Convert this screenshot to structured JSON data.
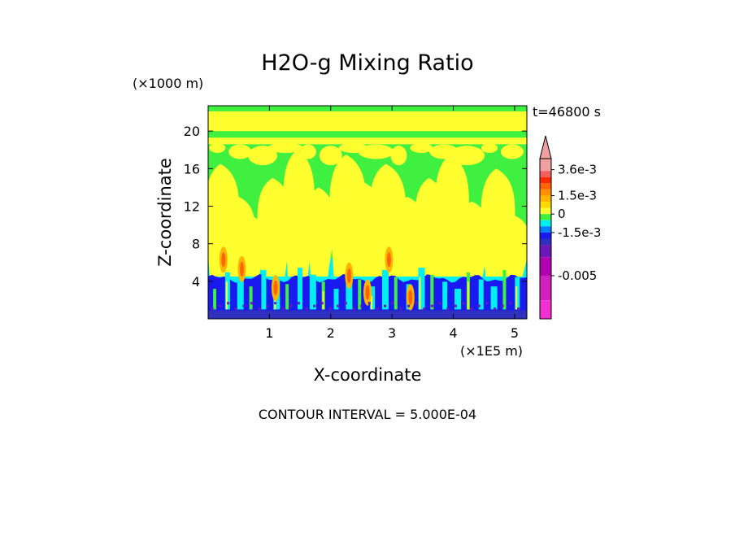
{
  "chart_data": {
    "type": "heatmap",
    "title": "H2O-g Mixing Ratio",
    "time_label": "t=46800 s",
    "xlabel": "X-coordinate",
    "ylabel": "Z-coordinate",
    "x_unit": "(×1E5 m)",
    "y_unit": "(×1000 m)",
    "xlim": [
      0,
      5.2
    ],
    "ylim": [
      0,
      22.7
    ],
    "x_ticks": [
      "1",
      "2",
      "3",
      "4",
      "5"
    ],
    "x_tick_values": [
      1,
      2,
      3,
      4,
      5
    ],
    "y_ticks": [
      "4",
      "8",
      "12",
      "16",
      "20"
    ],
    "y_tick_values": [
      4,
      8,
      12,
      16,
      20
    ],
    "contour_interval_text": "CONTOUR INTERVAL = 5.000E-04",
    "colorbar": {
      "labels": [
        "3.6e-3",
        "1.5e-3",
        "0",
        "-1.5e-3",
        "-0.005"
      ],
      "label_values": [
        0.0036,
        0.0015,
        0,
        -0.0015,
        -0.005
      ],
      "range": [
        -0.0085,
        0.0045
      ],
      "bands": [
        {
          "from": 0.0035,
          "to": 0.0045,
          "color": "#f0a0a0"
        },
        {
          "from": 0.003,
          "to": 0.0035,
          "color": "#f06060"
        },
        {
          "from": 0.0025,
          "to": 0.003,
          "color": "#ff2a00"
        },
        {
          "from": 0.002,
          "to": 0.0025,
          "color": "#ff6400"
        },
        {
          "from": 0.0015,
          "to": 0.002,
          "color": "#ff9000"
        },
        {
          "from": 0.001,
          "to": 0.0015,
          "color": "#ffb400"
        },
        {
          "from": 0.0005,
          "to": 0.001,
          "color": "#ffd800"
        },
        {
          "from": 0.0,
          "to": 0.0005,
          "color": "#ffff30"
        },
        {
          "from": -0.0005,
          "to": 0.0,
          "color": "#40f040"
        },
        {
          "from": -0.001,
          "to": -0.0005,
          "color": "#00f0f0"
        },
        {
          "from": -0.0015,
          "to": -0.001,
          "color": "#0080ff"
        },
        {
          "from": -0.002,
          "to": -0.0015,
          "color": "#1a1af0"
        },
        {
          "from": -0.0025,
          "to": -0.002,
          "color": "#3030c0"
        },
        {
          "from": -0.0035,
          "to": -0.0025,
          "color": "#6a18b8"
        },
        {
          "from": -0.005,
          "to": -0.0035,
          "color": "#b000b0"
        },
        {
          "from": -0.007,
          "to": -0.005,
          "color": "#d020c0"
        },
        {
          "from": -0.0085,
          "to": -0.007,
          "color": "#f030d0"
        }
      ]
    },
    "field_layers": [
      {
        "name": "yellow-upper-band",
        "color": "#ffff30",
        "z_range": [
          18.6,
          22.7
        ]
      },
      {
        "name": "green-mid",
        "color": "#40f040",
        "z_range": [
          6.5,
          18.6
        ]
      },
      {
        "name": "cyan-layer",
        "color": "#00f0f0",
        "z_range": [
          4.6,
          6.5
        ]
      },
      {
        "name": "blue-boundary-layer",
        "color": "#1a1af0",
        "z_range": [
          0.4,
          4.6
        ]
      },
      {
        "name": "dark-blue-surface",
        "color": "#3030c0",
        "z_range": [
          0,
          0.9
        ]
      }
    ],
    "plumes": [
      {
        "x": 0.25,
        "top": 16.5,
        "w": 0.35,
        "core": 7.5
      },
      {
        "x": 0.55,
        "top": 13.0,
        "w": 0.25,
        "core": 6.5
      },
      {
        "x": 0.75,
        "top": 11.0,
        "w": 0.2,
        "core": 0
      },
      {
        "x": 1.1,
        "top": 15.0,
        "w": 0.35,
        "core": 4.5
      },
      {
        "x": 1.5,
        "top": 18.0,
        "w": 0.3,
        "core": 0
      },
      {
        "x": 1.85,
        "top": 14.0,
        "w": 0.25,
        "core": 0
      },
      {
        "x": 2.3,
        "top": 17.5,
        "w": 0.4,
        "core": 5.8
      },
      {
        "x": 2.6,
        "top": 14.5,
        "w": 0.3,
        "core": 4.0
      },
      {
        "x": 2.95,
        "top": 16.5,
        "w": 0.4,
        "core": 7.5
      },
      {
        "x": 3.3,
        "top": 13.0,
        "w": 0.3,
        "core": 3.5
      },
      {
        "x": 3.65,
        "top": 15.0,
        "w": 0.3,
        "core": 0
      },
      {
        "x": 4.0,
        "top": 17.5,
        "w": 0.35,
        "core": 0
      },
      {
        "x": 4.35,
        "top": 12.5,
        "w": 0.3,
        "core": 0
      },
      {
        "x": 4.75,
        "top": 16.0,
        "w": 0.35,
        "core": 0
      },
      {
        "x": 5.05,
        "top": 11.0,
        "w": 0.2,
        "core": 0
      }
    ]
  }
}
